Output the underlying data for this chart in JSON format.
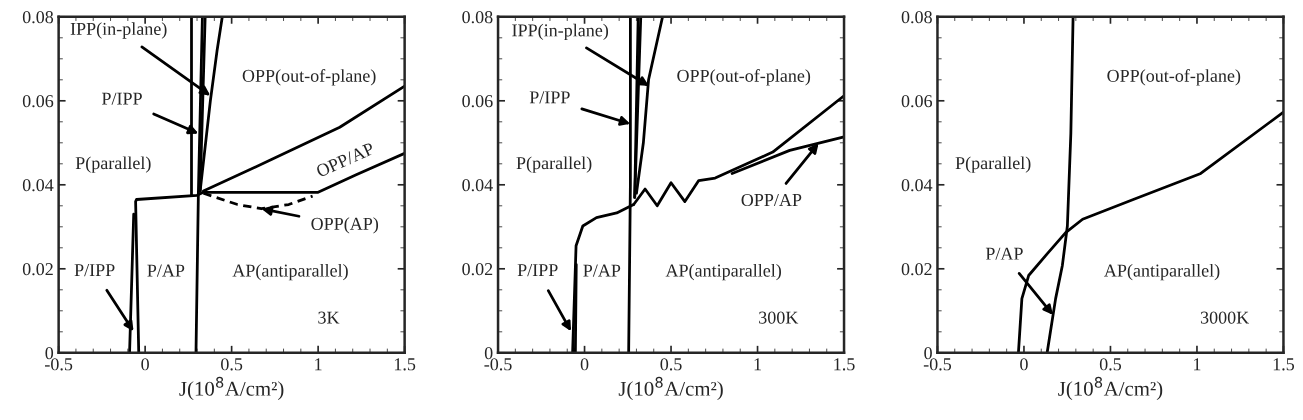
{
  "chart_data": [
    {
      "type": "line",
      "xlabel": "J(10$^{8}$A/cm²)",
      "xlim": [
        -0.5,
        1.5
      ],
      "ylim": [
        0,
        0.08
      ],
      "xticks": [
        -0.5,
        0,
        0.5,
        1,
        1.5
      ],
      "yticks": [
        0,
        0.02,
        0.04,
        0.06,
        0.08
      ],
      "series": [
        {
          "color": "#000000",
          "x": [
            -0.037,
            -0.055,
            -0.05,
            0.3,
            0.337,
            1.0,
            1.22,
            1.5
          ],
          "values": [
            0,
            0.036,
            0.0365,
            0.0375,
            0.0382,
            0.0382,
            0.0424,
            0.0475
          ]
        },
        {
          "color": "#000000",
          "x": [
            -0.09,
            -0.066
          ],
          "values": [
            0,
            0.033
          ]
        },
        {
          "color": "#000000",
          "x": [
            0.268,
            0.268
          ],
          "values": [
            0.0375,
            0.08
          ]
        },
        {
          "color": "#000000",
          "x": [
            0.294,
            0.308,
            0.331
          ],
          "values": [
            0,
            0.0385,
            0.08
          ]
        },
        {
          "color": "#000000",
          "x": [
            0.318,
            0.347
          ],
          "values": [
            0.0385,
            0.08
          ]
        },
        {
          "color": "#000000",
          "x": [
            0.318,
            0.377,
            0.416,
            0.446
          ],
          "values": [
            0.0385,
            0.06,
            0.072,
            0.08
          ]
        },
        {
          "color": "#000000",
          "x": [
            0.337,
            0.73,
            1.125,
            1.5
          ],
          "values": [
            0.0385,
            0.046,
            0.0537,
            0.0635
          ]
        },
        {
          "color": "#000000",
          "line_style": "dashed",
          "x": [
            0.337,
            0.534,
            0.672,
            0.83,
            0.968
          ],
          "values": [
            0.038,
            0.0353,
            0.0343,
            0.0353,
            0.0373
          ]
        }
      ],
      "annotations": [
        {
          "text": "IPP(in-plane)",
          "x": 0.377,
          "y": 0.0612
        },
        {
          "text": "P/IPP",
          "x": 0.308,
          "y": 0.0522
        },
        "P(parallel)",
        "OPP(out-of-plane)",
        "OPP/AP",
        {
          "text": "OPP(AP)",
          "x": 0.672,
          "y": 0.0343
        },
        {
          "text": "P/IPP",
          "x": -0.067,
          "y": 0.0051
        },
        "P/AP",
        "AP(antiparallel)",
        "3K"
      ]
    },
    {
      "type": "line",
      "xlabel": "J(10$^{8}$A/cm²)",
      "xlim": [
        -0.5,
        1.5
      ],
      "ylim": [
        0,
        0.08
      ],
      "xticks": [
        -0.5,
        0,
        0.5,
        1,
        1.5
      ],
      "yticks": [
        0,
        0.02,
        0.04,
        0.06,
        0.08
      ],
      "series": [
        {
          "color": "#000000",
          "x": [
            -0.069,
            -0.049,
            -0.01,
            0.069,
            0.186,
            0.284
          ],
          "values": [
            0,
            0.0255,
            0.0302,
            0.0322,
            0.0333,
            0.0353
          ]
        },
        {
          "color": "#000000",
          "x": [
            -0.053,
            -0.048
          ],
          "values": [
            0,
            0.021
          ]
        },
        {
          "color": "#000000",
          "x": [
            0.255,
            0.265,
            0.265
          ],
          "values": [
            0,
            0.04,
            0.08
          ]
        },
        {
          "color": "#000000",
          "x": [
            0.29,
            0.31
          ],
          "values": [
            0.037,
            0.08
          ]
        },
        {
          "color": "#000000",
          "x": [
            0.29,
            0.325
          ],
          "values": [
            0.037,
            0.08
          ]
        },
        {
          "color": "#000000",
          "x": [
            0.3,
            0.34,
            0.37,
            0.451
          ],
          "values": [
            0.038,
            0.05,
            0.065,
            0.08
          ]
        },
        {
          "color": "#000000",
          "x": [
            0.284,
            0.35,
            0.42,
            0.5,
            0.58,
            0.66,
            0.755,
            1.088,
            1.5
          ],
          "values": [
            0.0353,
            0.039,
            0.035,
            0.0405,
            0.036,
            0.041,
            0.0416,
            0.0478,
            0.0612
          ]
        },
        {
          "color": "#000000",
          "x": [
            0.853,
            1.186,
            1.5
          ],
          "values": [
            0.0427,
            0.0482,
            0.0514
          ]
        }
      ],
      "annotations": [
        {
          "text": "IPP(in-plane)",
          "x": 0.373,
          "y": 0.0635
        },
        {
          "text": "P/IPP",
          "x": 0.265,
          "y": 0.0545
        },
        "P(parallel)",
        "OPP(out-of-plane)",
        {
          "text": "OPP/AP",
          "x": 1.353,
          "y": 0.0499
        },
        {
          "text": "P/IPP",
          "x": -0.078,
          "y": 0.0051
        },
        "P/AP",
        "AP(antiparallel)",
        "300K"
      ]
    },
    {
      "type": "line",
      "xlabel": "J(10$^{8}$A/cm²)",
      "xlim": [
        -0.5,
        1.5
      ],
      "ylim": [
        0,
        0.08
      ],
      "xticks": [
        -0.5,
        0,
        0.5,
        1,
        1.5
      ],
      "yticks": [
        0,
        0.02,
        0.04,
        0.06,
        0.08
      ],
      "series": [
        {
          "color": "#000000",
          "x": [
            -0.032,
            -0.012,
            0.027,
            0.124,
            0.241,
            0.339,
            0.632,
            1.022,
            1.5
          ],
          "values": [
            0,
            0.0129,
            0.0184,
            0.0231,
            0.0286,
            0.0318,
            0.0365,
            0.0427,
            0.0573
          ]
        },
        {
          "color": "#000000",
          "x": [
            0.134,
            0.183,
            0.222,
            0.251,
            0.271,
            0.284
          ],
          "values": [
            0,
            0.0129,
            0.0208,
            0.0302,
            0.0522,
            0.08
          ]
        }
      ],
      "annotations": [
        "P(parallel)",
        "OPP(out-of-plane)",
        {
          "text": "P/AP",
          "x": 0.168,
          "y": 0.009
        },
        "AP(antiparallel)",
        "3000K"
      ]
    }
  ]
}
